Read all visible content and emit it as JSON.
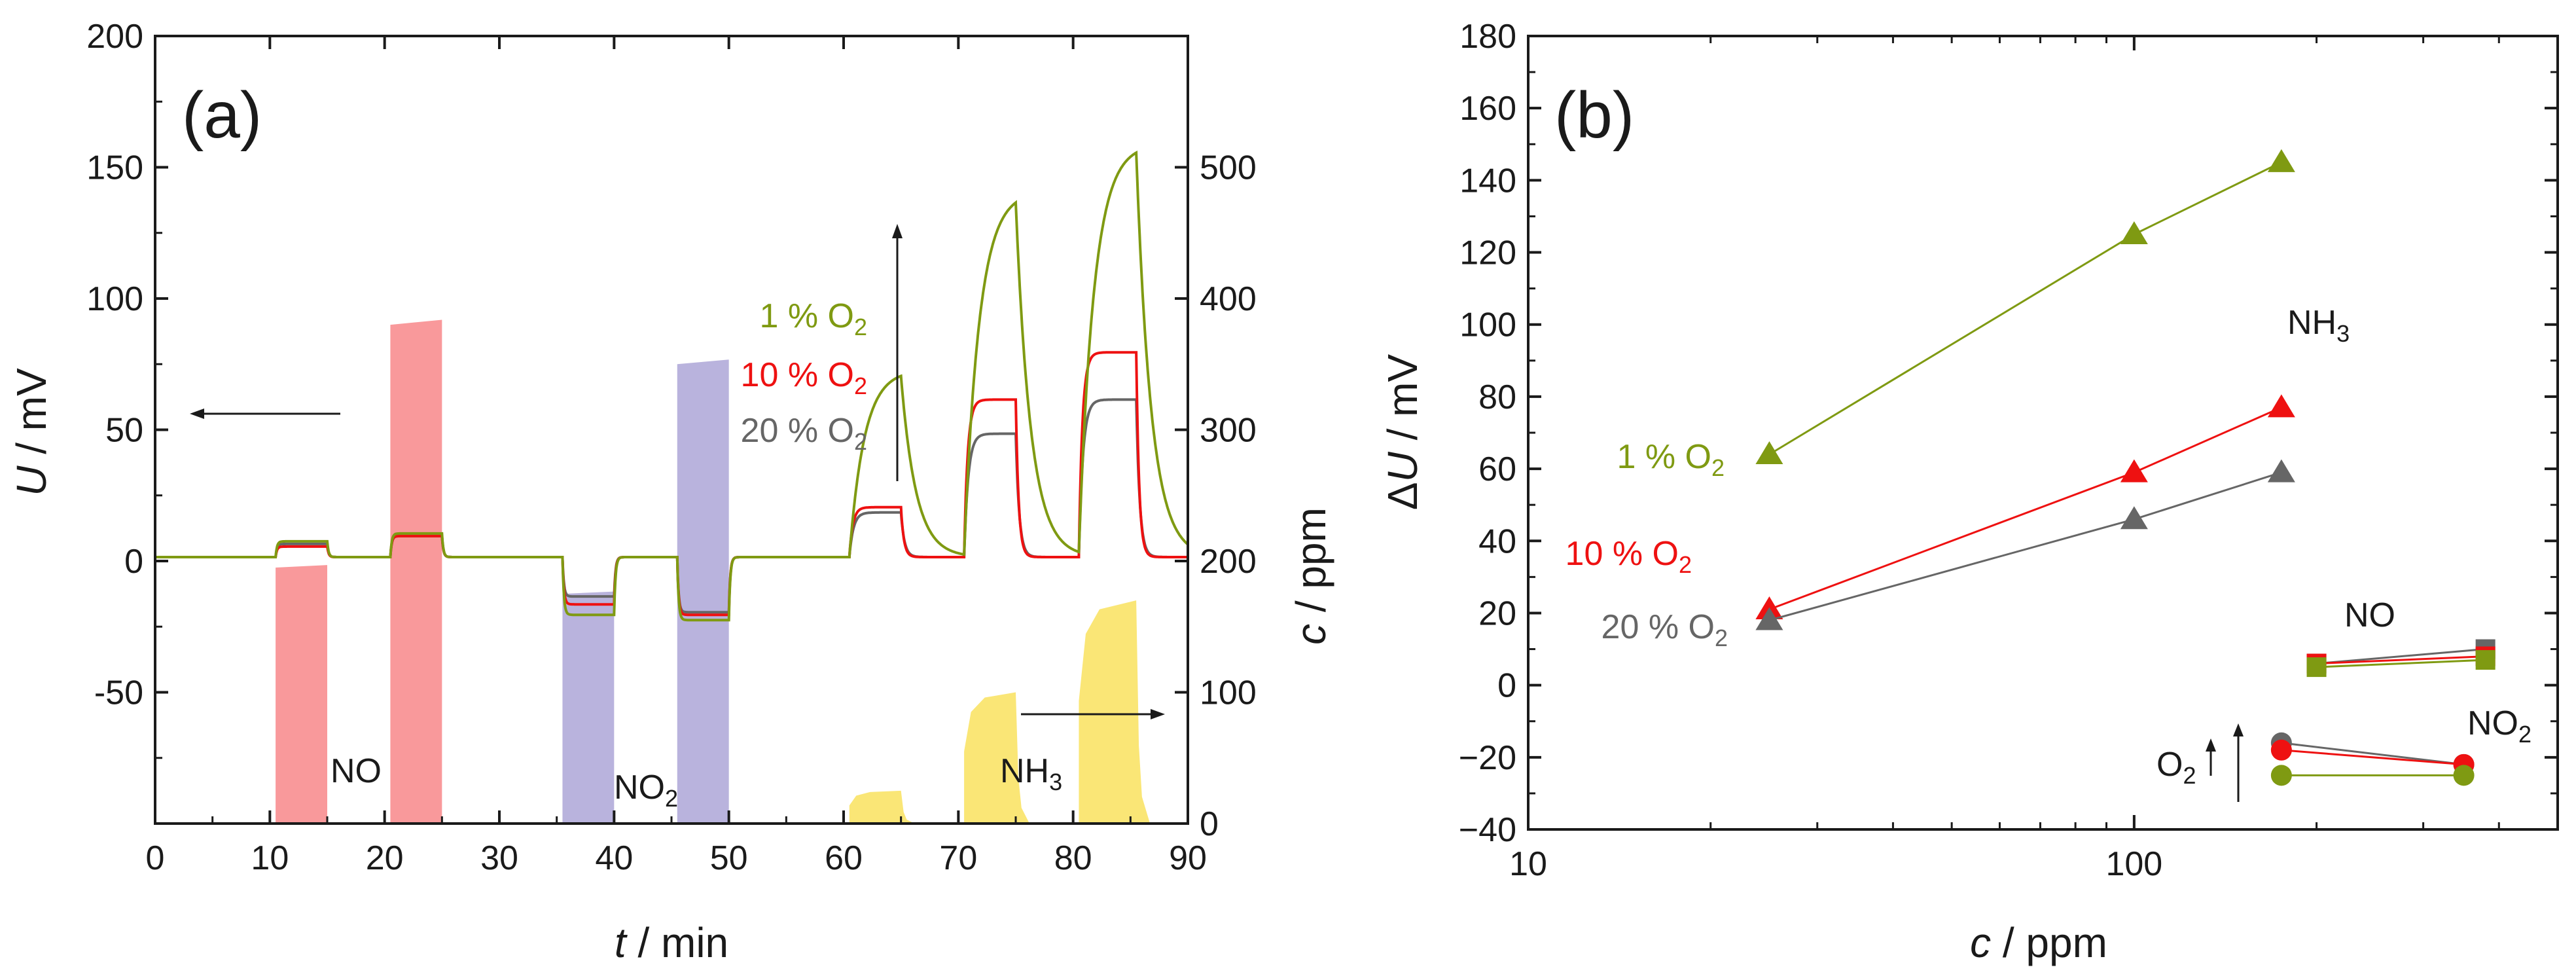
{
  "colors": {
    "o2_1": "#7f9a12",
    "o2_10": "#ee1111",
    "o2_20": "#666666",
    "no_fill": "#f9999b",
    "no2_fill": "#b9b3dd",
    "nh3_fill": "#fae676",
    "axis": "#1a1a1a"
  },
  "chart_data": [
    {
      "panel_label": "(a)",
      "type": "line",
      "xlabel_italic": "t",
      "xlabel_rest": " / min",
      "ylabel_italic": "U",
      "ylabel_rest": " / mV",
      "y2label_italic": "c",
      "y2label_rest": " / ppm",
      "xlim": [
        0,
        90
      ],
      "ylim": [
        -100,
        200
      ],
      "y2lim": [
        0,
        600
      ],
      "xticks": [
        0,
        10,
        20,
        30,
        40,
        50,
        60,
        70,
        80,
        90
      ],
      "yticks": [
        -50,
        0,
        50,
        100,
        150,
        200
      ],
      "y2ticks": [
        0,
        100,
        200,
        300,
        400,
        500
      ],
      "series_legend": [
        {
          "name": "1 % O",
          "sub": "2",
          "color": "#7f9a12"
        },
        {
          "name": "10 % O",
          "sub": "2",
          "color": "#ee1111"
        },
        {
          "name": "20 % O",
          "sub": "2",
          "color": "#666666"
        }
      ],
      "gas_labels": {
        "no": "NO",
        "no2": "NO",
        "no2_sub": "2",
        "nh3": "NH",
        "nh3_sub": "3"
      },
      "voltage_steps": [
        {
          "t0": 10.5,
          "t1": 15,
          "o2_1": 6,
          "o2_10": 4,
          "o2_20": 5
        },
        {
          "t0": 20.5,
          "t1": 25,
          "o2_1": 9,
          "o2_10": 8,
          "o2_20": 8
        },
        {
          "t0": 35.5,
          "t1": 40,
          "o2_1": -22,
          "o2_10": -18,
          "o2_20": -15
        },
        {
          "t0": 45.5,
          "t1": 50,
          "o2_1": -24,
          "o2_10": -22,
          "o2_20": -21
        },
        {
          "t0": 60.5,
          "t1": 65,
          "o2_1": 69,
          "o2_10": 19,
          "o2_20": 17
        },
        {
          "t0": 70.5,
          "t1": 75,
          "o2_1": 135,
          "o2_10": 60,
          "o2_20": 47
        },
        {
          "t0": 80.5,
          "t1": 85.5,
          "o2_1": 154,
          "o2_10": 78,
          "o2_20": 60
        }
      ],
      "concentration_pulses": [
        {
          "gas": "NO",
          "t0": 10.5,
          "t1": 15,
          "ppm": 195
        },
        {
          "gas": "NO",
          "t0": 20.5,
          "t1": 25,
          "ppm": 380
        },
        {
          "gas": "NO2",
          "t0": 35.5,
          "t1": 40,
          "ppm": 175
        },
        {
          "gas": "NO2",
          "t0": 45.5,
          "t1": 50,
          "ppm": 350
        },
        {
          "gas": "NH3",
          "t0": 60.5,
          "t1": 65,
          "ppm": 25
        },
        {
          "gas": "NH3",
          "t0": 70.5,
          "t1": 75,
          "ppm": 100
        },
        {
          "gas": "NH3",
          "t0": 80.5,
          "t1": 85.5,
          "ppm": 170
        }
      ]
    },
    {
      "panel_label": "(b)",
      "type": "scatter",
      "xscale": "log",
      "xlabel_italic": "c",
      "xlabel_rest": " / ppm",
      "ylabel_italic": "U",
      "ylabel_prefix": "Δ",
      "ylabel_rest": " / mV",
      "xlim": [
        10,
        500
      ],
      "ylim": [
        -40,
        180
      ],
      "xticks": [
        10,
        100
      ],
      "yticks": [
        -40,
        -20,
        0,
        20,
        40,
        60,
        80,
        100,
        120,
        140,
        160,
        180
      ],
      "labels": {
        "nh3": "NH",
        "nh3_sub": "3",
        "no": "NO",
        "no2": "NO",
        "no2_sub": "2",
        "o2_arrow": "O",
        "o2_arrow_sub": "2",
        "o2_1": "1 % O",
        "o2_10": "10 % O",
        "o2_20": "20 % O",
        "sub": "2"
      },
      "series": [
        {
          "gas": "NH3",
          "o2": "1 %",
          "x": [
            25,
            100,
            175
          ],
          "y": [
            64,
            125,
            145
          ]
        },
        {
          "gas": "NH3",
          "o2": "10 %",
          "x": [
            25,
            100,
            175
          ],
          "y": [
            21,
            59,
            77
          ]
        },
        {
          "gas": "NH3",
          "o2": "20 %",
          "x": [
            25,
            100,
            175
          ],
          "y": [
            18,
            46,
            59
          ]
        },
        {
          "gas": "NO",
          "o2": "20 %",
          "x": [
            200,
            380
          ],
          "y": [
            6,
            10
          ]
        },
        {
          "gas": "NO",
          "o2": "10 %",
          "x": [
            200,
            380
          ],
          "y": [
            6,
            8
          ]
        },
        {
          "gas": "NO",
          "o2": "1 %",
          "x": [
            200,
            380
          ],
          "y": [
            5,
            7
          ]
        },
        {
          "gas": "NO2",
          "o2": "20 %",
          "x": [
            175,
            350
          ],
          "y": [
            -16,
            -22
          ]
        },
        {
          "gas": "NO2",
          "o2": "10 %",
          "x": [
            175,
            350
          ],
          "y": [
            -18,
            -22
          ]
        },
        {
          "gas": "NO2",
          "o2": "1 %",
          "x": [
            175,
            350
          ],
          "y": [
            -25,
            -25
          ]
        }
      ]
    }
  ]
}
